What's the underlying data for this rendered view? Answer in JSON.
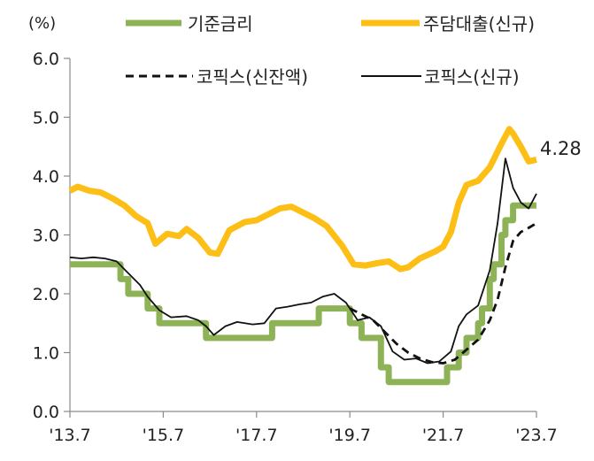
{
  "chart_data": {
    "type": "line",
    "title": "",
    "unit_label": "(%)",
    "xlabel": "",
    "ylabel": "",
    "ylim": [
      0.0,
      6.0
    ],
    "yticks": [
      "0.0",
      "1.0",
      "2.0",
      "3.0",
      "4.0",
      "5.0",
      "6.0"
    ],
    "x_start": "2013-07",
    "x_end": "2023-07",
    "xtick_labels": [
      "'13.7",
      "'15.7",
      "'17.7",
      "'19.7",
      "'21.7",
      "'23.7"
    ],
    "xtick_dates": [
      "2013-07",
      "2015-07",
      "2017-07",
      "2019-07",
      "2021-07",
      "2023-07"
    ],
    "grid": false,
    "legend_position": "top",
    "annotation": {
      "text": "4.28",
      "date": "2023-07",
      "value": 4.28
    },
    "colors": {
      "base_rate": "#8DB356",
      "mortgage_new": "#FDBE16",
      "cofix_balance": "#111111",
      "cofix_new": "#111111"
    },
    "series": [
      {
        "key": "base_rate",
        "name": "기준금리",
        "style": "thick",
        "points": [
          [
            "2013-07",
            2.5
          ],
          [
            "2014-08",
            2.5
          ],
          [
            "2014-08",
            2.25
          ],
          [
            "2014-10",
            2.25
          ],
          [
            "2014-10",
            2.0
          ],
          [
            "2015-03",
            2.0
          ],
          [
            "2015-03",
            1.75
          ],
          [
            "2015-06",
            1.75
          ],
          [
            "2015-06",
            1.5
          ],
          [
            "2016-06",
            1.5
          ],
          [
            "2016-06",
            1.25
          ],
          [
            "2017-11",
            1.25
          ],
          [
            "2017-11",
            1.5
          ],
          [
            "2018-11",
            1.5
          ],
          [
            "2018-11",
            1.75
          ],
          [
            "2019-07",
            1.75
          ],
          [
            "2019-07",
            1.5
          ],
          [
            "2019-10",
            1.5
          ],
          [
            "2019-10",
            1.25
          ],
          [
            "2020-03",
            1.25
          ],
          [
            "2020-03",
            0.75
          ],
          [
            "2020-05",
            0.75
          ],
          [
            "2020-05",
            0.5
          ],
          [
            "2021-08",
            0.5
          ],
          [
            "2021-08",
            0.75
          ],
          [
            "2021-11",
            0.75
          ],
          [
            "2021-11",
            1.0
          ],
          [
            "2022-01",
            1.0
          ],
          [
            "2022-01",
            1.25
          ],
          [
            "2022-04",
            1.25
          ],
          [
            "2022-04",
            1.5
          ],
          [
            "2022-05",
            1.5
          ],
          [
            "2022-05",
            1.75
          ],
          [
            "2022-07",
            1.75
          ],
          [
            "2022-07",
            2.25
          ],
          [
            "2022-08",
            2.25
          ],
          [
            "2022-08",
            2.5
          ],
          [
            "2022-10",
            2.5
          ],
          [
            "2022-10",
            3.0
          ],
          [
            "2022-11",
            3.0
          ],
          [
            "2022-11",
            3.25
          ],
          [
            "2023-01",
            3.25
          ],
          [
            "2023-01",
            3.5
          ],
          [
            "2023-07",
            3.5
          ]
        ]
      },
      {
        "key": "mortgage_new",
        "name": "주담대출(신규)",
        "style": "thick",
        "points": [
          [
            "2013-07",
            3.75
          ],
          [
            "2013-09",
            3.82
          ],
          [
            "2013-12",
            3.75
          ],
          [
            "2014-03",
            3.72
          ],
          [
            "2014-06",
            3.62
          ],
          [
            "2014-09",
            3.5
          ],
          [
            "2014-12",
            3.32
          ],
          [
            "2015-03",
            3.2
          ],
          [
            "2015-05",
            2.85
          ],
          [
            "2015-08",
            3.02
          ],
          [
            "2015-11",
            2.98
          ],
          [
            "2016-01",
            3.1
          ],
          [
            "2016-04",
            2.95
          ],
          [
            "2016-07",
            2.7
          ],
          [
            "2016-09",
            2.68
          ],
          [
            "2016-12",
            3.08
          ],
          [
            "2017-04",
            3.22
          ],
          [
            "2017-07",
            3.25
          ],
          [
            "2017-10",
            3.35
          ],
          [
            "2018-01",
            3.45
          ],
          [
            "2018-04",
            3.48
          ],
          [
            "2018-07",
            3.38
          ],
          [
            "2018-10",
            3.28
          ],
          [
            "2019-01",
            3.15
          ],
          [
            "2019-05",
            2.82
          ],
          [
            "2019-08",
            2.5
          ],
          [
            "2019-11",
            2.48
          ],
          [
            "2020-02",
            2.52
          ],
          [
            "2020-05",
            2.55
          ],
          [
            "2020-08",
            2.42
          ],
          [
            "2020-10",
            2.45
          ],
          [
            "2021-01",
            2.6
          ],
          [
            "2021-05",
            2.72
          ],
          [
            "2021-07",
            2.8
          ],
          [
            "2021-09",
            3.05
          ],
          [
            "2021-11",
            3.55
          ],
          [
            "2022-01",
            3.85
          ],
          [
            "2022-04",
            3.92
          ],
          [
            "2022-07",
            4.15
          ],
          [
            "2022-10",
            4.55
          ],
          [
            "2022-12",
            4.8
          ],
          [
            "2023-01",
            4.72
          ],
          [
            "2023-03",
            4.5
          ],
          [
            "2023-05",
            4.25
          ],
          [
            "2023-07",
            4.28
          ]
        ]
      },
      {
        "key": "cofix_balance",
        "name": "코픽스(신잔액)",
        "style": "dashed",
        "points": [
          [
            "2019-07",
            1.75
          ],
          [
            "2019-10",
            1.65
          ],
          [
            "2020-01",
            1.55
          ],
          [
            "2020-04",
            1.35
          ],
          [
            "2020-07",
            1.15
          ],
          [
            "2020-10",
            1.0
          ],
          [
            "2021-01",
            0.9
          ],
          [
            "2021-04",
            0.84
          ],
          [
            "2021-07",
            0.82
          ],
          [
            "2021-10",
            0.88
          ],
          [
            "2022-01",
            1.05
          ],
          [
            "2022-04",
            1.22
          ],
          [
            "2022-07",
            1.55
          ],
          [
            "2022-09",
            1.9
          ],
          [
            "2022-11",
            2.45
          ],
          [
            "2023-01",
            2.9
          ],
          [
            "2023-03",
            3.05
          ],
          [
            "2023-05",
            3.12
          ],
          [
            "2023-07",
            3.2
          ]
        ]
      },
      {
        "key": "cofix_new",
        "name": "코픽스(신규)",
        "style": "thin",
        "points": [
          [
            "2013-07",
            2.62
          ],
          [
            "2013-10",
            2.6
          ],
          [
            "2014-01",
            2.62
          ],
          [
            "2014-04",
            2.6
          ],
          [
            "2014-07",
            2.55
          ],
          [
            "2014-10",
            2.35
          ],
          [
            "2015-01",
            2.15
          ],
          [
            "2015-03",
            1.95
          ],
          [
            "2015-06",
            1.72
          ],
          [
            "2015-09",
            1.6
          ],
          [
            "2016-01",
            1.62
          ],
          [
            "2016-04",
            1.55
          ],
          [
            "2016-06",
            1.45
          ],
          [
            "2016-08",
            1.3
          ],
          [
            "2016-11",
            1.45
          ],
          [
            "2017-02",
            1.52
          ],
          [
            "2017-06",
            1.48
          ],
          [
            "2017-09",
            1.5
          ],
          [
            "2017-12",
            1.75
          ],
          [
            "2018-03",
            1.78
          ],
          [
            "2018-06",
            1.82
          ],
          [
            "2018-09",
            1.85
          ],
          [
            "2018-12",
            1.95
          ],
          [
            "2019-03",
            2.0
          ],
          [
            "2019-06",
            1.85
          ],
          [
            "2019-09",
            1.55
          ],
          [
            "2019-12",
            1.6
          ],
          [
            "2020-03",
            1.45
          ],
          [
            "2020-06",
            1.02
          ],
          [
            "2020-09",
            0.88
          ],
          [
            "2020-12",
            0.9
          ],
          [
            "2021-03",
            0.82
          ],
          [
            "2021-06",
            0.85
          ],
          [
            "2021-09",
            1.02
          ],
          [
            "2021-11",
            1.45
          ],
          [
            "2022-01",
            1.65
          ],
          [
            "2022-04",
            1.8
          ],
          [
            "2022-07",
            2.4
          ],
          [
            "2022-09",
            3.2
          ],
          [
            "2022-11",
            4.3
          ],
          [
            "2023-01",
            3.8
          ],
          [
            "2023-03",
            3.55
          ],
          [
            "2023-05",
            3.45
          ],
          [
            "2023-07",
            3.7
          ]
        ]
      }
    ]
  }
}
